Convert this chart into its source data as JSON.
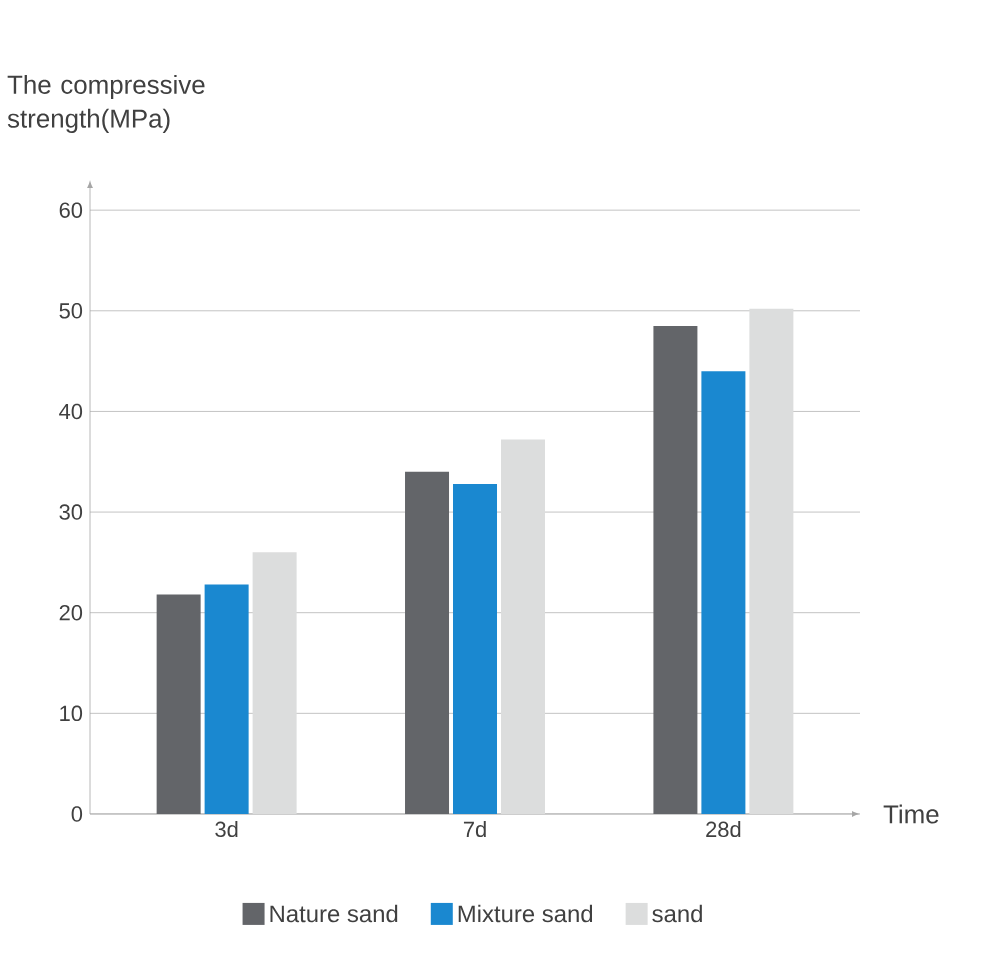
{
  "chart_data": {
    "type": "bar",
    "ylabel": "The compressive strength(MPa)",
    "xlabel": "Time",
    "categories": [
      "3d",
      "7d",
      "28d"
    ],
    "series": [
      {
        "name": "Nature sand",
        "color": "#636569",
        "values": [
          21.8,
          34,
          48.5
        ]
      },
      {
        "name": "Mixture sand",
        "color": "#1a88d0",
        "values": [
          22.8,
          32.8,
          44
        ]
      },
      {
        "name": "sand",
        "color": "#dcdddd",
        "values": [
          26,
          37.2,
          50.2
        ]
      }
    ],
    "ylim": [
      0,
      60
    ],
    "yticks": [
      0,
      10,
      20,
      30,
      40,
      50,
      60
    ],
    "grid": "y",
    "legend": "bottom"
  }
}
